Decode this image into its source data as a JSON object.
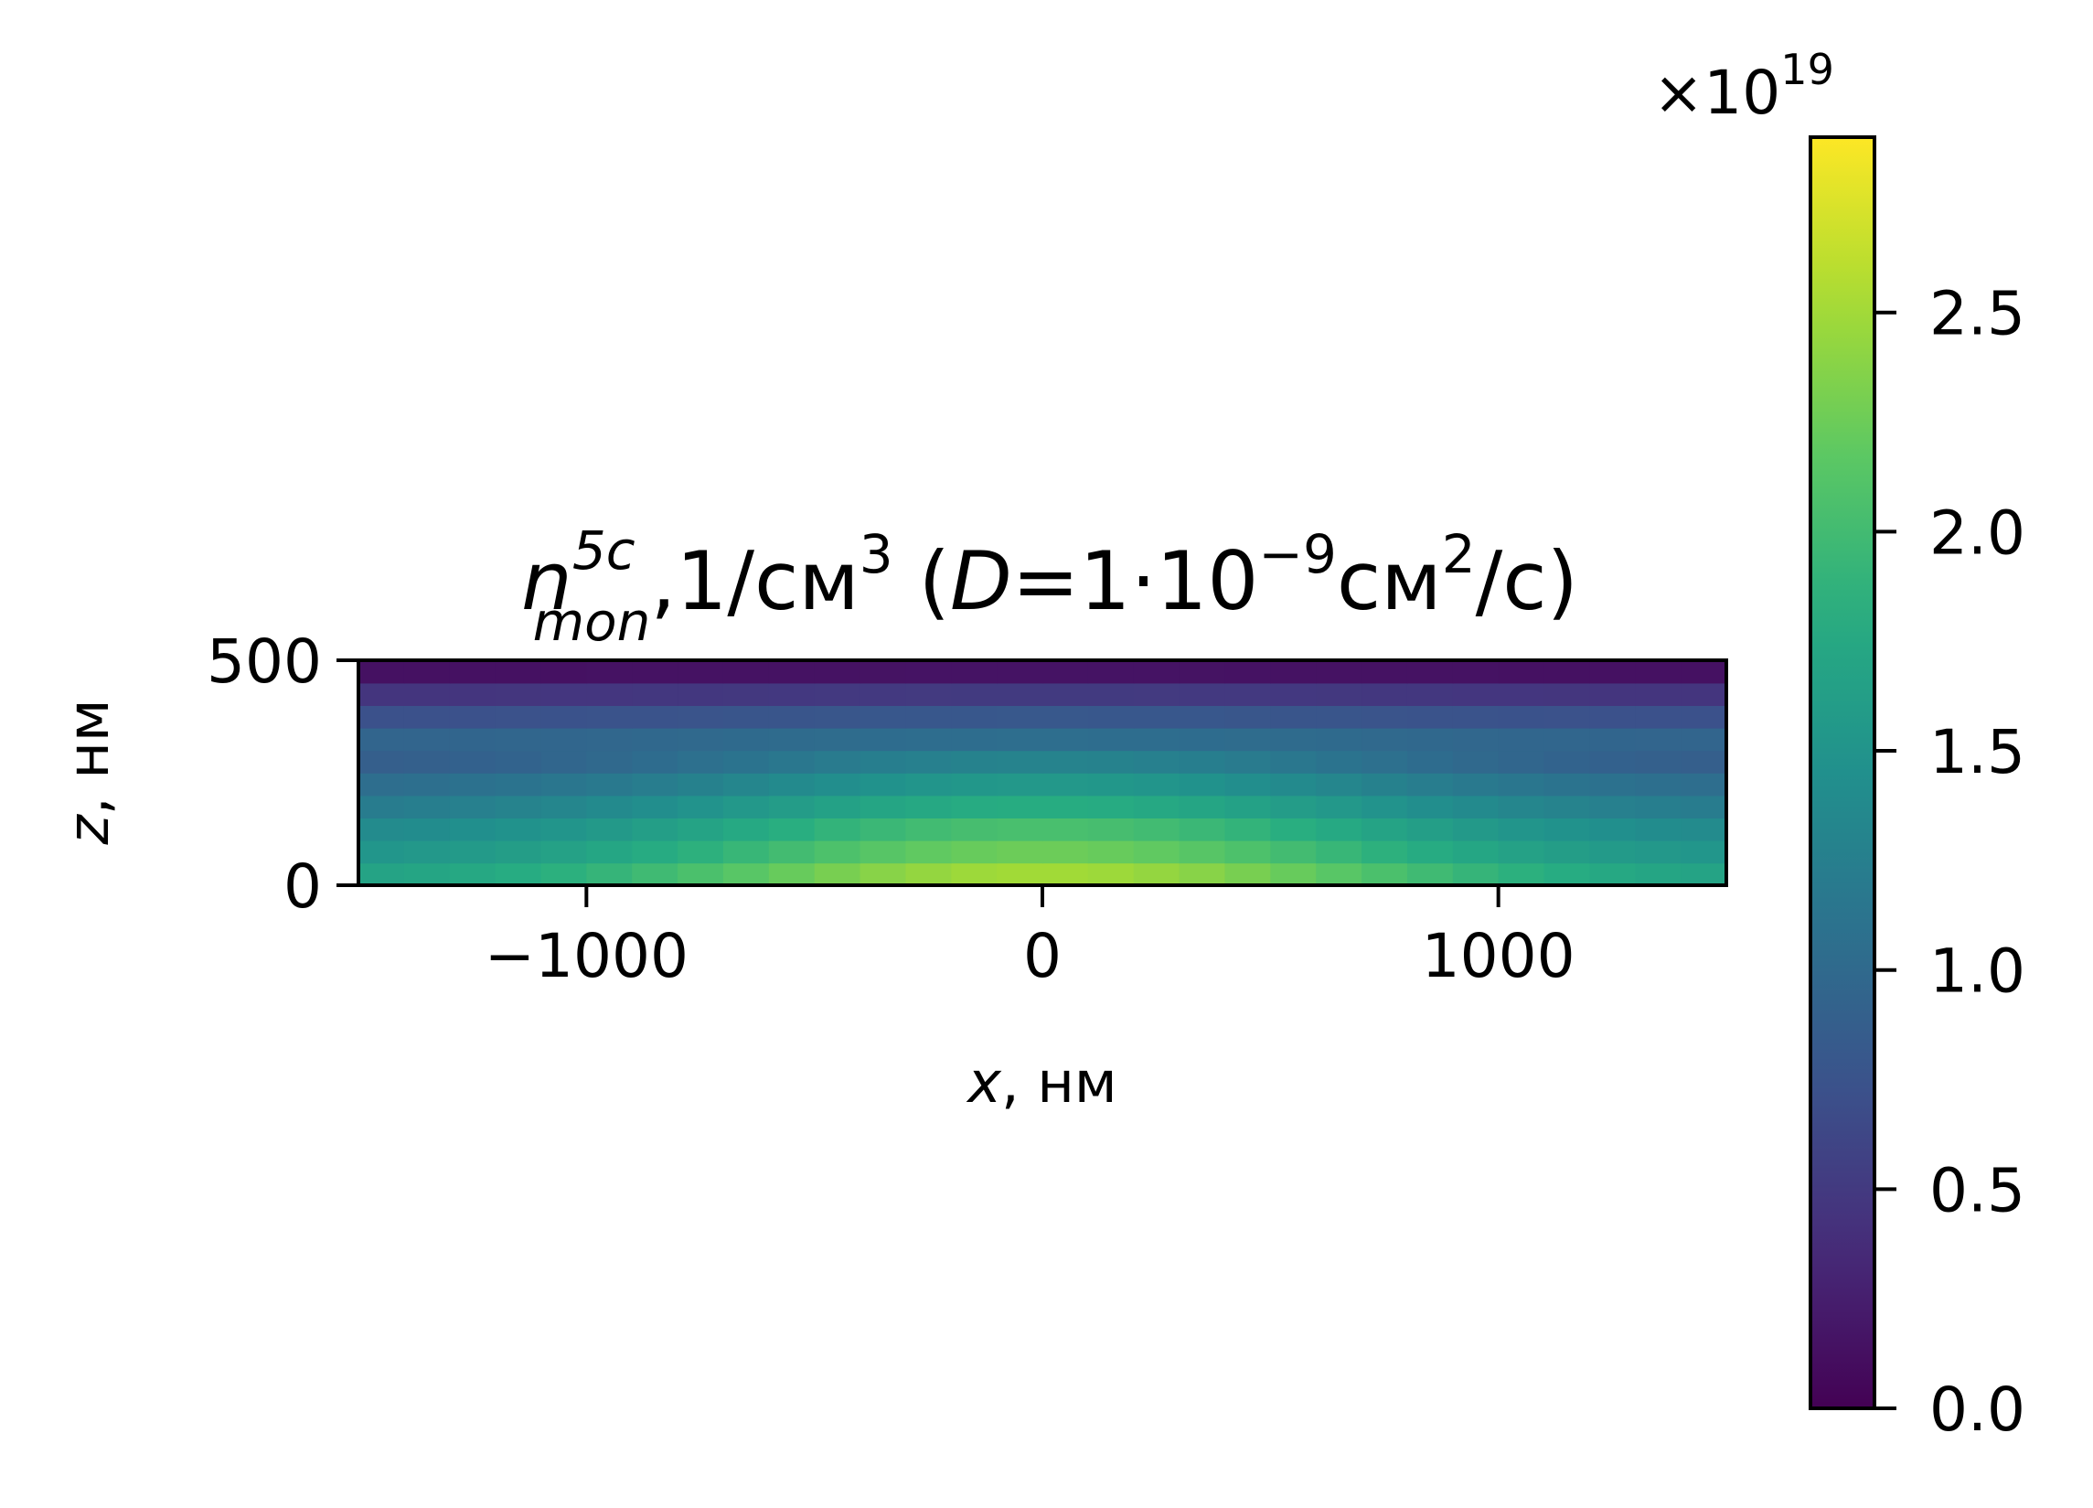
{
  "chart_data": {
    "type": "heatmap",
    "title": {
      "symbol": "n",
      "sup": "5c",
      "sub": "mon",
      "rest1": ",1/см",
      "rest1_sup": "3",
      "rest2": " (",
      "rest2_italic": "D",
      "rest3": "=1·10",
      "rest3_sup": "−9",
      "rest4": "см",
      "rest4_sup": "2",
      "rest5": "/с)"
    },
    "xlabel": {
      "symbol": "x",
      "unit": ", нм"
    },
    "ylabel": {
      "symbol": "z",
      "unit": ", нм"
    },
    "xlim": [
      -1500,
      1500
    ],
    "ylim": [
      0,
      500
    ],
    "x_ticks": [
      -1000,
      0,
      1000
    ],
    "x_tick_labels": [
      "−1000",
      "0",
      "1000"
    ],
    "y_ticks": [
      0,
      500
    ],
    "y_tick_labels": [
      "0",
      "500"
    ],
    "grid": false,
    "colormap": "viridis",
    "nx": 30,
    "nz": 10,
    "z_layers_bottom_to_top": [
      2.5,
      2.25,
      2.05,
      1.8,
      1.55,
      1.3,
      1.05,
      0.8,
      0.5,
      0.15
    ],
    "lateral_peak_x": 0,
    "lateral_width": 900,
    "lateral_amplitude": 0.35,
    "colorbar": {
      "min": 0.0,
      "max": 2.9,
      "ticks": [
        0.0,
        0.5,
        1.0,
        1.5,
        2.0,
        2.5
      ],
      "tick_labels": [
        "0.0",
        "0.5",
        "1.0",
        "1.5",
        "2.0",
        "2.5"
      ],
      "offset_label_base": "×10",
      "offset_label_exp": "19"
    }
  }
}
